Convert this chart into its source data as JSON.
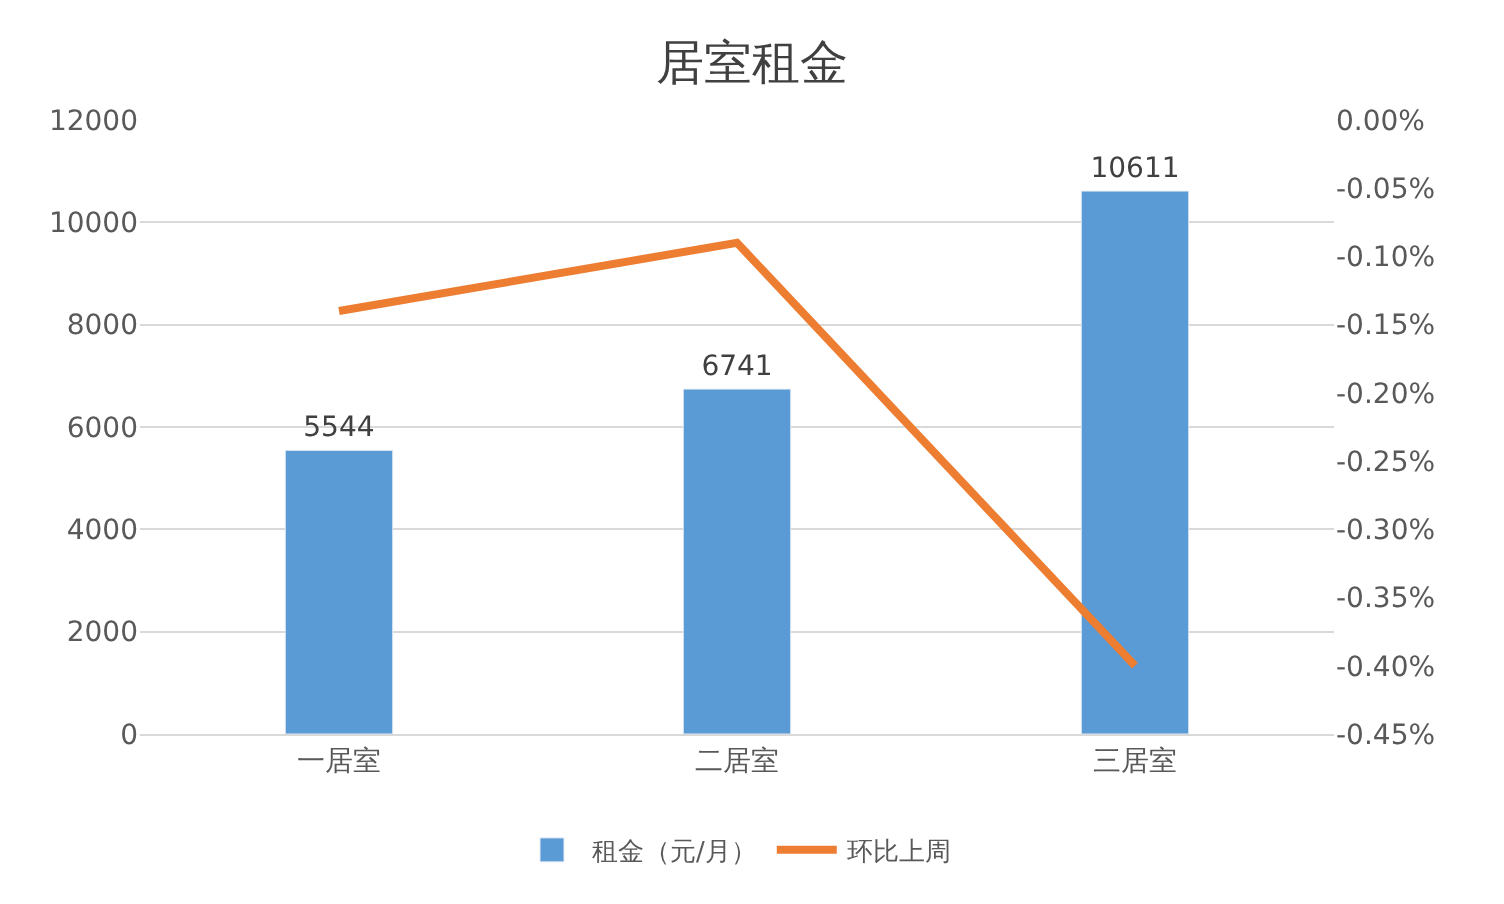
{
  "chart_data": {
    "type": "bar",
    "title": "居室租金",
    "categories": [
      "一居室",
      "二居室",
      "三居室"
    ],
    "series": [
      {
        "name": "租金（元/月）",
        "color": "#5b9bd5",
        "values": [
          5544,
          6741,
          10611
        ],
        "value_labels": [
          "5544",
          "6741",
          "10611"
        ]
      },
      {
        "name": "环比上周",
        "type": "line",
        "axis": "y2",
        "color": "#ed7d31",
        "values": [
          -0.14,
          -0.09,
          -0.4
        ]
      }
    ],
    "ylim": [
      0,
      12000
    ],
    "yticks": [
      0,
      2000,
      4000,
      6000,
      8000,
      10000,
      12000
    ],
    "y2lim": [
      -0.45,
      0
    ],
    "y2ticks": [
      {
        "value": 0,
        "label": "0.00%"
      },
      {
        "value": -0.05,
        "label": "-0.05%"
      },
      {
        "value": -0.1,
        "label": "-0.10%"
      },
      {
        "value": -0.15,
        "label": "-0.15%"
      },
      {
        "value": -0.2,
        "label": "-0.20%"
      },
      {
        "value": -0.25,
        "label": "-0.25%"
      },
      {
        "value": -0.3,
        "label": "-0.30%"
      },
      {
        "value": -0.35,
        "label": "-0.35%"
      },
      {
        "value": -0.4,
        "label": "-0.40%"
      },
      {
        "value": -0.45,
        "label": "-0.45%"
      }
    ],
    "grid": "y",
    "legend": "bottom",
    "marker": "none",
    "line_style": "solid"
  }
}
